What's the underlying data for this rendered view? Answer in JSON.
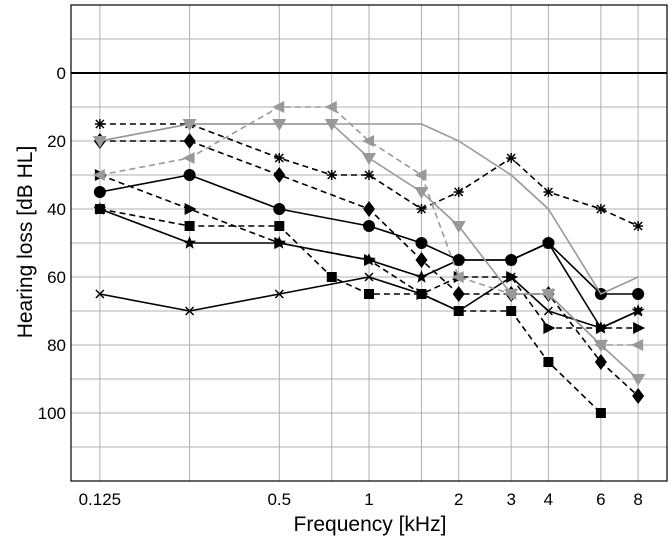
{
  "chart_data": {
    "type": "line",
    "title": "",
    "xlabel": "Frequency [kHz]",
    "ylabel": "Hearing loss [dB HL]",
    "x_scale": "log",
    "y_inverted": true,
    "xlim": [
      0.1,
      10
    ],
    "ylim": [
      -20,
      120
    ],
    "grid": true,
    "legend": "none",
    "x_ticks": [
      {
        "value": 0.125,
        "label": "0.125"
      },
      {
        "value": 0.5,
        "label": "0.5"
      },
      {
        "value": 1,
        "label": "1"
      },
      {
        "value": 2,
        "label": "2"
      },
      {
        "value": 3,
        "label": "3"
      },
      {
        "value": 4,
        "label": "4"
      },
      {
        "value": 6,
        "label": "6"
      },
      {
        "value": 8,
        "label": "8"
      }
    ],
    "x_grid": [
      0.125,
      0.25,
      0.5,
      0.75,
      1,
      1.5,
      2,
      3,
      4,
      6,
      8
    ],
    "y_ticks": [
      {
        "value": 0,
        "label": "0"
      },
      {
        "value": 20,
        "label": "20"
      },
      {
        "value": 40,
        "label": "40"
      },
      {
        "value": 60,
        "label": "60"
      },
      {
        "value": 80,
        "label": "80"
      },
      {
        "value": 100,
        "label": "100"
      }
    ],
    "y_grid": [
      -10,
      0,
      10,
      20,
      30,
      40,
      50,
      60,
      70,
      80,
      90,
      100,
      110
    ],
    "reference_line": {
      "y": 0,
      "color": "#000000"
    },
    "series": [
      {
        "marker": "asterisk",
        "color": "#000000",
        "dash": "dashed",
        "x": [
          0.125,
          0.25,
          0.5,
          0.75,
          1,
          1.5,
          2,
          3,
          4,
          6,
          8
        ],
        "y": [
          15,
          15,
          25,
          30,
          30,
          40,
          35,
          25,
          35,
          40,
          45
        ]
      },
      {
        "marker": "diamond",
        "color": "#000000",
        "dash": "dashed",
        "x": [
          0.125,
          0.25,
          0.5,
          1,
          1.5,
          2,
          3,
          4,
          6,
          8
        ],
        "y": [
          20,
          20,
          30,
          40,
          55,
          65,
          65,
          65,
          85,
          95
        ]
      },
      {
        "marker": "circle",
        "color": "#000000",
        "dash": "solid",
        "x": [
          0.125,
          0.25,
          0.5,
          1,
          1.5,
          2,
          3,
          4,
          6,
          8
        ],
        "y": [
          35,
          30,
          40,
          45,
          50,
          55,
          55,
          50,
          65,
          65
        ]
      },
      {
        "marker": "triangle-right",
        "color": "#000000",
        "dash": "dashed",
        "x": [
          0.125,
          0.25,
          0.5,
          1,
          1.5,
          2,
          3,
          4,
          6,
          8
        ],
        "y": [
          30,
          40,
          50,
          55,
          65,
          60,
          60,
          75,
          75,
          75
        ]
      },
      {
        "marker": "star",
        "color": "#000000",
        "dash": "solid",
        "x": [
          0.125,
          0.25,
          0.5,
          1,
          1.5,
          2,
          3,
          4,
          6,
          8
        ],
        "y": [
          40,
          50,
          50,
          55,
          60,
          55,
          55,
          50,
          75,
          70
        ]
      },
      {
        "marker": "square",
        "color": "#000000",
        "dash": "dashed",
        "x": [
          0.125,
          0.25,
          0.5,
          0.75,
          1,
          1.5,
          2,
          3,
          4,
          6
        ],
        "y": [
          40,
          45,
          45,
          60,
          65,
          65,
          70,
          70,
          85,
          100
        ]
      },
      {
        "marker": "x",
        "color": "#000000",
        "dash": "solid",
        "x": [
          0.125,
          0.25,
          0.5,
          1,
          1.5,
          2,
          3,
          4,
          6,
          8
        ],
        "y": [
          65,
          70,
          65,
          60,
          65,
          70,
          60,
          70,
          75,
          70
        ]
      },
      {
        "marker": "none",
        "color": "#999999",
        "dash": "solid",
        "x": [
          0.125,
          0.25,
          1.5,
          2,
          3,
          4,
          6,
          8
        ],
        "y": [
          20,
          15,
          15,
          20,
          30,
          40,
          65,
          60
        ]
      },
      {
        "marker": "triangle-down",
        "color": "#999999",
        "dash": "solid",
        "x": [
          0.125,
          0.25,
          0.5,
          0.75,
          1,
          1.5,
          2,
          3,
          4,
          6,
          8
        ],
        "y": [
          20,
          15,
          15,
          15,
          25,
          35,
          45,
          65,
          65,
          80,
          90
        ]
      },
      {
        "marker": "triangle-left",
        "color": "#999999",
        "dash": "dashed",
        "x": [
          0.125,
          0.25,
          0.5,
          0.75,
          1,
          1.5,
          2,
          3,
          4,
          6,
          8
        ],
        "y": [
          30,
          25,
          10,
          10,
          20,
          30,
          60,
          65,
          65,
          80,
          80
        ]
      }
    ]
  }
}
